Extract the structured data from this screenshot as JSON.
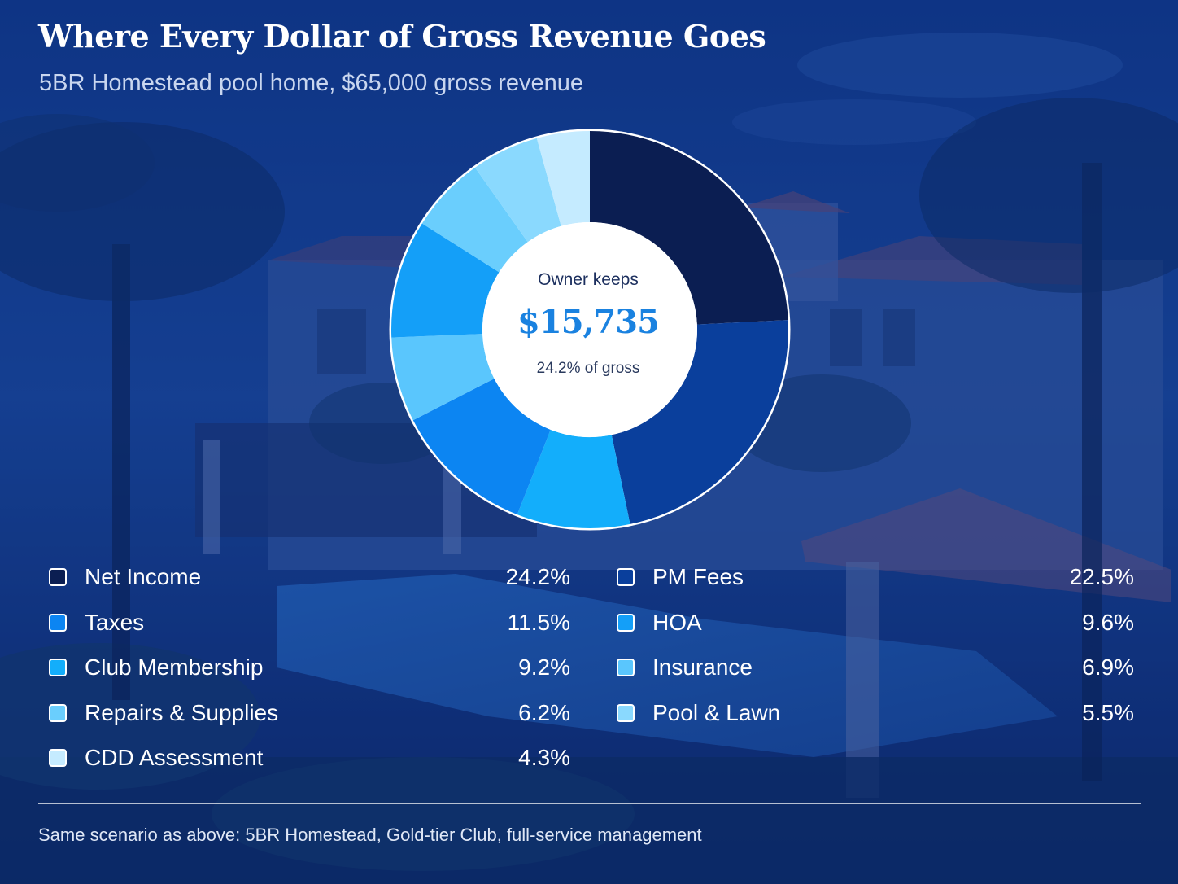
{
  "title": "Where Every Dollar of Gross Revenue Goes",
  "subtitle": "5BR Homestead pool home, $65,000 gross revenue",
  "center": {
    "label": "Owner keeps",
    "value": "$15,735",
    "sublabel": "24.2% of gross"
  },
  "footnote": "Same scenario as above: 5BR Homestead, Gold-tier Club, full-service management",
  "chart_data": {
    "type": "pie",
    "donut": true,
    "start_angle_deg": 0,
    "direction": "clockwise",
    "categories": [
      "Net Income",
      "PM Fees",
      "Taxes",
      "HOA",
      "Club Membership",
      "Insurance",
      "Repairs & Supplies",
      "Pool & Lawn",
      "CDD Assessment"
    ],
    "values": [
      24.2,
      22.5,
      11.5,
      9.6,
      9.2,
      6.9,
      6.2,
      5.5,
      4.3
    ],
    "value_labels": [
      "24.2%",
      "22.5%",
      "11.5%",
      "9.6%",
      "9.2%",
      "6.9%",
      "6.2%",
      "5.5%",
      "4.3%"
    ],
    "colors": [
      "#0b1e52",
      "#0a3f9c",
      "#0c85f2",
      "#149ff8",
      "#13aefb",
      "#5ac6fd",
      "#6acefd",
      "#8ad9fe",
      "#c5ebff"
    ],
    "pie_order": [
      "Net Income",
      "PM Fees",
      "Club Membership",
      "Taxes",
      "Insurance",
      "HOA",
      "Repairs & Supplies",
      "Pool & Lawn",
      "CDD Assessment"
    ],
    "legend_position": "bottom, two columns"
  }
}
